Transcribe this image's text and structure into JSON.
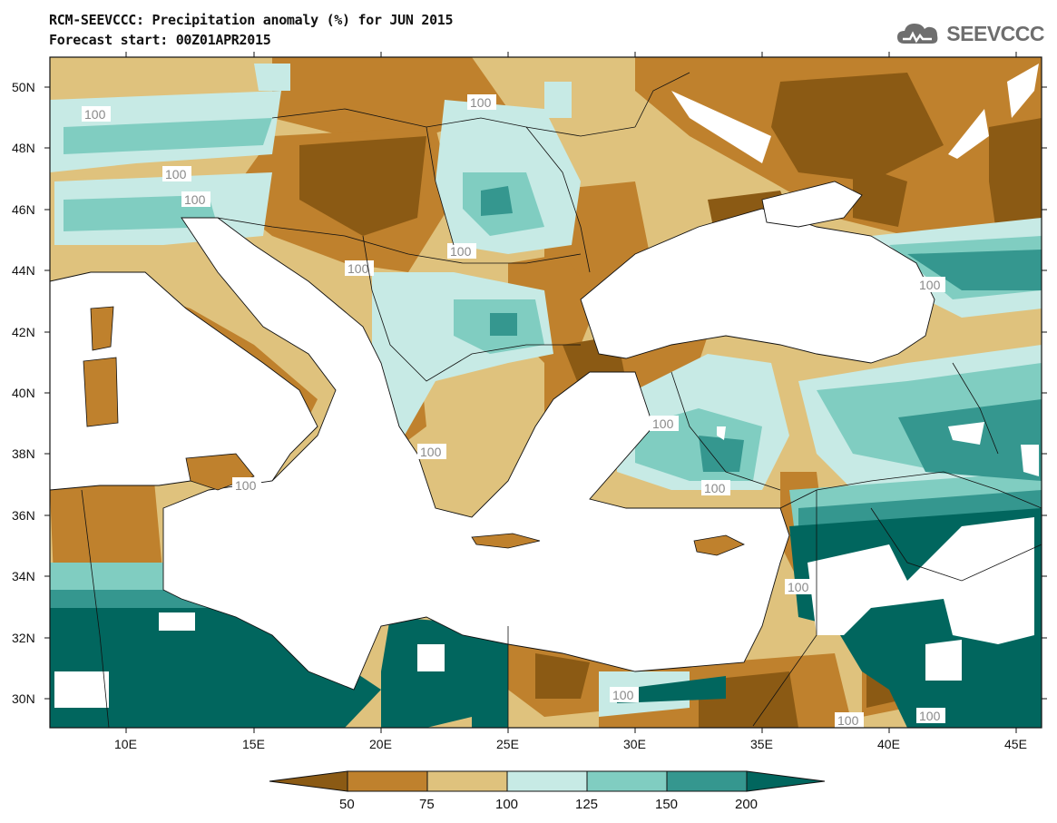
{
  "header": {
    "title_line1": "RCM-SEEVCCC: Precipitation anomaly (%) for JUN 2015",
    "title_line2": "Forecast start: 00Z01APR2015",
    "logo_text": "SEEVCCC"
  },
  "map": {
    "lon_range": [
      7,
      46
    ],
    "lat_range": [
      29,
      51
    ],
    "lat_ticks": [
      "50N",
      "48N",
      "46N",
      "44N",
      "42N",
      "40N",
      "38N",
      "36N",
      "34N",
      "32N",
      "30N"
    ],
    "lon_ticks": [
      "10E",
      "15E",
      "20E",
      "25E",
      "30E",
      "35E",
      "40E",
      "45E"
    ],
    "contour_label": "100",
    "palette": {
      "below_50": "#8b5a14",
      "50_75": "#bf812d",
      "75_100": "#dfc27d",
      "100_125": "#c7eae5",
      "125_150": "#80cdc1",
      "150_200": "#35978f",
      "above_200": "#01665e",
      "sea": "#ffffff"
    }
  },
  "colorbar": {
    "levels": [
      "50",
      "75",
      "100",
      "125",
      "150",
      "200"
    ],
    "colors": [
      "#8b5a14",
      "#bf812d",
      "#dfc27d",
      "#c7eae5",
      "#80cdc1",
      "#35978f",
      "#01665e"
    ]
  }
}
